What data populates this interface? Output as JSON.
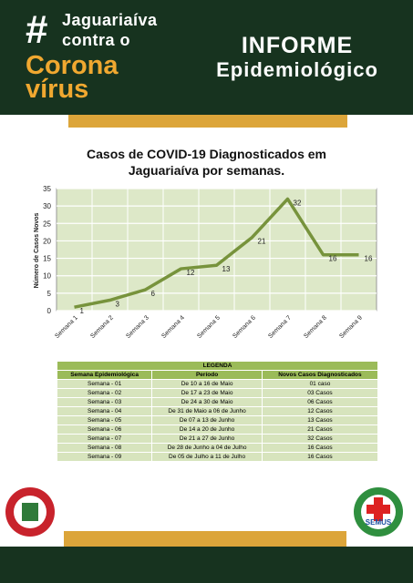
{
  "header": {
    "hash": "#",
    "line1": "Jaguariaíva",
    "line2": "contra o",
    "line3": "Corona",
    "line4": "vírus",
    "report1": "INFORME",
    "report2": "Epidemiológico"
  },
  "chart_data": {
    "type": "line",
    "title": "Casos de COVID-19 Diagnosticados em Jaguariaíva por semanas.",
    "y_label": "Número de Casos Novos",
    "categories": [
      "Semana 1",
      "Semana 2",
      "Semana 3",
      "Semana 4",
      "Semana 5",
      "Semana 6",
      "Semana 7",
      "Semana 8",
      "Semana 9"
    ],
    "values": [
      1,
      3,
      6,
      12,
      13,
      21,
      32,
      16,
      16
    ],
    "color": "#77933c",
    "ylim": [
      0,
      35
    ],
    "yticks": [
      0,
      5,
      10,
      15,
      20,
      25,
      30,
      35
    ],
    "grid": true
  },
  "table": {
    "title": "LEGENDA",
    "columns": [
      "Semana Epidemiológica",
      "Período",
      "Novos Casos Diagnosticados"
    ],
    "rows": [
      [
        "Semana - 01",
        "De 10 a 16 de Maio",
        "01 caso"
      ],
      [
        "Semana - 02",
        "De 17 a 23 de Maio",
        "03 Casos"
      ],
      [
        "Semana - 03",
        "De 24 a 30 de Maio",
        "06 Casos"
      ],
      [
        "Semana - 04",
        "De 31 de Maio a 06 de Junho",
        "12 Casos"
      ],
      [
        "Semana - 05",
        "De 07 a 13 de Junho",
        "13 Casos"
      ],
      [
        "Semana - 06",
        "De 14 a 20 de Junho",
        "21 Casos"
      ],
      [
        "Semana - 07",
        "De 21 a 27 de Junho",
        "32 Casos"
      ],
      [
        "Semana - 08",
        "De 28 de Junho a 04 de Julho",
        "16 Casos"
      ],
      [
        "Semana - 09",
        "De 05 de Julho a 11 de Julho",
        "16 Casos"
      ]
    ]
  },
  "logos": {
    "right": "SEMUS"
  }
}
